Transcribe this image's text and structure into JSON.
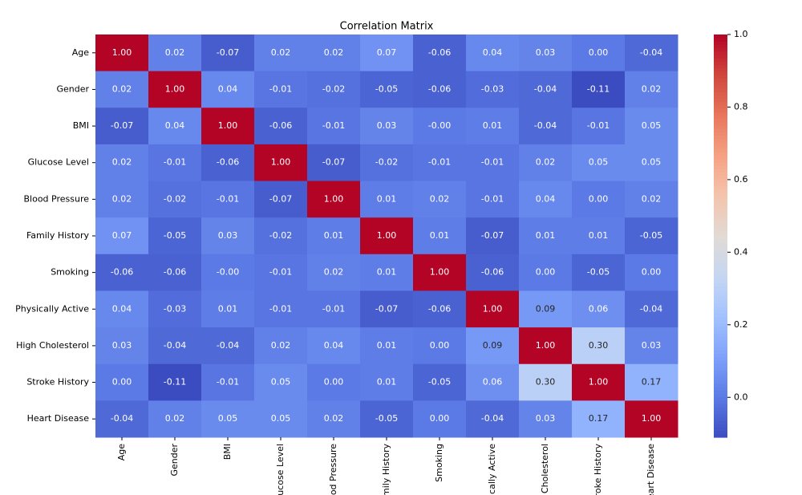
{
  "chart_data": {
    "type": "heatmap",
    "title": "Correlation Matrix",
    "categories": [
      "Age",
      "Gender",
      "BMI",
      "Glucose Level",
      "Blood Pressure",
      "Family History",
      "Smoking",
      "Physically Active",
      "High Cholesterol",
      "Stroke History",
      "Heart Disease"
    ],
    "values": [
      [
        1,
        0.02,
        -0.07,
        0.02,
        0.02,
        0.07,
        -0.06,
        0.04,
        0.03,
        0,
        -0.04
      ],
      [
        0.02,
        1,
        0.04,
        -0.01,
        -0.02,
        -0.05,
        -0.06,
        -0.03,
        -0.04,
        -0.11,
        0.02
      ],
      [
        -0.07,
        0.04,
        1,
        -0.06,
        -0.01,
        0.03,
        0,
        0.01,
        -0.04,
        -0.01,
        0.05
      ],
      [
        0.02,
        -0.01,
        -0.06,
        1,
        -0.07,
        -0.02,
        -0.01,
        -0.01,
        0.02,
        0.05,
        0.05
      ],
      [
        0.02,
        -0.02,
        -0.01,
        -0.07,
        1,
        0.01,
        0.02,
        -0.01,
        0.04,
        0,
        0.02
      ],
      [
        0.07,
        -0.05,
        0.03,
        -0.02,
        0.01,
        1,
        0.01,
        -0.07,
        0.01,
        0.01,
        -0.05
      ],
      [
        -0.06,
        -0.06,
        0,
        -0.01,
        0.02,
        0.01,
        1,
        -0.06,
        0,
        -0.05,
        0
      ],
      [
        0.04,
        -0.03,
        0.01,
        -0.01,
        -0.01,
        -0.07,
        -0.06,
        1,
        0.09,
        0.06,
        -0.04
      ],
      [
        0.03,
        -0.04,
        -0.04,
        0.02,
        0.04,
        0.01,
        0,
        0.09,
        1,
        0.3,
        0.03
      ],
      [
        0,
        -0.11,
        -0.01,
        0.05,
        0,
        0.01,
        -0.05,
        0.06,
        0.3,
        1,
        0.17
      ],
      [
        -0.04,
        0.02,
        0.05,
        0.05,
        0.02,
        -0.05,
        0,
        -0.04,
        0.03,
        0.17,
        1
      ]
    ],
    "value_labels": [
      [
        "1.00",
        "0.02",
        "-0.07",
        "0.02",
        "0.02",
        "0.07",
        "-0.06",
        "0.04",
        "0.03",
        "0.00",
        "-0.04"
      ],
      [
        "0.02",
        "1.00",
        "0.04",
        "-0.01",
        "-0.02",
        "-0.05",
        "-0.06",
        "-0.03",
        "-0.04",
        "-0.11",
        "0.02"
      ],
      [
        "-0.07",
        "0.04",
        "1.00",
        "-0.06",
        "-0.01",
        "0.03",
        "-0.00",
        "0.01",
        "-0.04",
        "-0.01",
        "0.05"
      ],
      [
        "0.02",
        "-0.01",
        "-0.06",
        "1.00",
        "-0.07",
        "-0.02",
        "-0.01",
        "-0.01",
        "0.02",
        "0.05",
        "0.05"
      ],
      [
        "0.02",
        "-0.02",
        "-0.01",
        "-0.07",
        "1.00",
        "0.01",
        "0.02",
        "-0.01",
        "0.04",
        "0.00",
        "0.02"
      ],
      [
        "0.07",
        "-0.05",
        "0.03",
        "-0.02",
        "0.01",
        "1.00",
        "0.01",
        "-0.07",
        "0.01",
        "0.01",
        "-0.05"
      ],
      [
        "-0.06",
        "-0.06",
        "-0.00",
        "-0.01",
        "0.02",
        "0.01",
        "1.00",
        "-0.06",
        "0.00",
        "-0.05",
        "0.00"
      ],
      [
        "0.04",
        "-0.03",
        "0.01",
        "-0.01",
        "-0.01",
        "-0.07",
        "-0.06",
        "1.00",
        "0.09",
        "0.06",
        "-0.04"
      ],
      [
        "0.03",
        "-0.04",
        "-0.04",
        "0.02",
        "0.04",
        "0.01",
        "0.00",
        "0.09",
        "1.00",
        "0.30",
        "0.03"
      ],
      [
        "0.00",
        "-0.11",
        "-0.01",
        "0.05",
        "0.00",
        "0.01",
        "-0.05",
        "0.06",
        "0.30",
        "1.00",
        "0.17"
      ],
      [
        "-0.04",
        "0.02",
        "0.05",
        "0.05",
        "0.02",
        "-0.05",
        "0.00",
        "-0.04",
        "0.03",
        "0.17",
        "1.00"
      ]
    ],
    "cmap": "coolwarm",
    "zlim": [
      -0.11,
      1
    ],
    "zticks": [
      {
        "value": 0,
        "label": "0.0"
      },
      {
        "value": 0.2,
        "label": "0.2"
      },
      {
        "value": 0.4,
        "label": "0.4"
      },
      {
        "value": 0.6,
        "label": "0.6"
      },
      {
        "value": 0.8,
        "label": "0.8"
      },
      {
        "value": 1,
        "label": "1.0"
      }
    ]
  }
}
